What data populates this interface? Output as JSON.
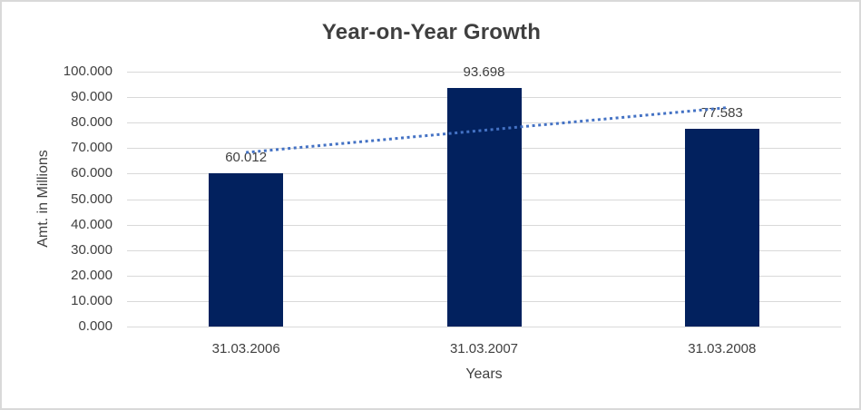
{
  "chart_data": {
    "type": "bar",
    "title": "Year-on-Year Growth",
    "xlabel": "Years",
    "ylabel": "Amt. in Millions",
    "categories": [
      "31.03.2006",
      "31.03.2007",
      "31.03.2008"
    ],
    "values": [
      60.012,
      93.698,
      77.583
    ],
    "data_labels": [
      "60.012",
      "93.698",
      "77.583"
    ],
    "ylim": [
      0,
      100
    ],
    "ytick_labels": [
      "0.000",
      "10.000",
      "20.000",
      "30.000",
      "40.000",
      "50.000",
      "60.000",
      "70.000",
      "80.000",
      "90.000",
      "100.000"
    ],
    "ytick_values": [
      0,
      10,
      20,
      30,
      40,
      50,
      60,
      70,
      80,
      90,
      100
    ],
    "grid": true,
    "legend_position": "none",
    "colors": {
      "bar": "#02215E",
      "gridline": "#D9D9D9",
      "trendline": "#4472C4",
      "text": "#404040"
    },
    "trendline": {
      "type": "linear",
      "style": "dotted",
      "start_value": 68.3,
      "end_value": 85.9
    }
  }
}
